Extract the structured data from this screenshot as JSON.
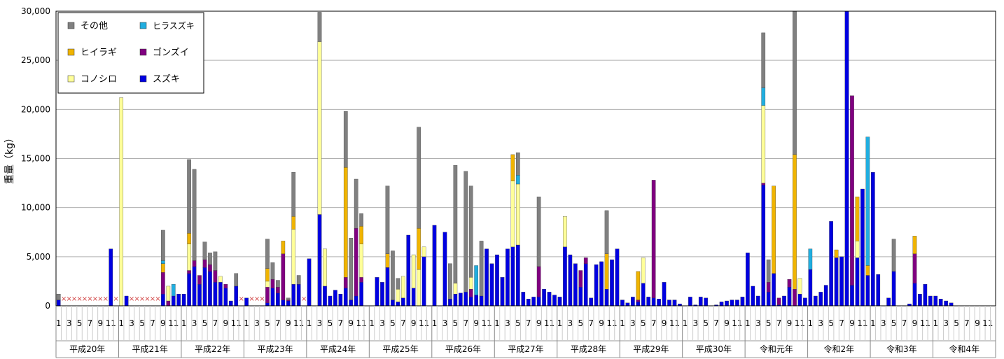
{
  "chart_data": {
    "type": "bar",
    "stacked": true,
    "ylabel": "重量（kg）",
    "ylim": [
      0,
      30000
    ],
    "yticks": [
      "0",
      "5,000",
      "10,000",
      "15,000",
      "20,000",
      "25,000",
      "30,000"
    ],
    "grid": true,
    "legend_position": "top-left",
    "month_labels": [
      "1",
      "",
      "3",
      "",
      "5",
      "",
      "7",
      "",
      "9",
      "",
      "11",
      ""
    ],
    "years": [
      "平成20年",
      "平成21年",
      "平成22年",
      "平成23年",
      "平成24年",
      "平成25年",
      "平成26年",
      "平成27年",
      "平成28年",
      "平成29年",
      "平成30年",
      "令和元年",
      "令和2年",
      "令和3年",
      "令和4年"
    ],
    "zero_marker": "×",
    "series": [
      {
        "name": "スズキ",
        "color": "#0000e0",
        "values": [
          600,
          0,
          0,
          0,
          0,
          0,
          0,
          0,
          0,
          0,
          5800,
          0,
          0,
          1000,
          0,
          0,
          0,
          0,
          0,
          0,
          1200,
          0,
          1000,
          1200,
          1200,
          3300,
          4000,
          2200,
          3900,
          3500,
          2400,
          2400,
          1800,
          500,
          2000,
          0,
          800,
          0,
          0,
          0,
          300,
          1800,
          1300,
          600,
          500,
          2200,
          2200,
          0,
          4800,
          0,
          9300,
          2000,
          1000,
          1600,
          1200,
          1800,
          600,
          1000,
          2400,
          0,
          0,
          2900,
          2400,
          3900,
          600,
          400,
          800,
          7200,
          1800,
          0,
          5000,
          0,
          8200,
          0,
          7500,
          700,
          1200,
          1300,
          1400,
          900,
          1100,
          1000,
          5800,
          4300,
          5200,
          2900,
          5800,
          6000,
          6200,
          1400,
          700,
          900,
          900,
          1700,
          1400,
          1100,
          900,
          6000,
          5200,
          4300,
          1900,
          4300,
          800,
          4200,
          4500,
          1700,
          4700,
          5800,
          600,
          300,
          900,
          400,
          2300,
          900,
          800,
          700,
          2400,
          600,
          600,
          200,
          0,
          900,
          100,
          900,
          800,
          0,
          100,
          400,
          500,
          600,
          600,
          900,
          5400,
          2000,
          1000,
          12300,
          1400,
          3300,
          100,
          1000,
          1900,
          0,
          1200,
          800,
          3700,
          1000,
          1400,
          2100,
          8600,
          4900,
          5000,
          30000,
          2100,
          4900,
          11900,
          3100,
          13600,
          3200,
          0,
          800,
          3500,
          0,
          0,
          200,
          2300,
          1200,
          2200,
          1000,
          1000,
          700,
          500,
          300,
          0,
          0,
          0,
          0,
          0,
          0,
          0,
          0
        ]
      },
      {
        "name": "ゴンズイ",
        "color": "#800080",
        "values": [
          0,
          0,
          0,
          0,
          0,
          0,
          0,
          0,
          0,
          0,
          0,
          0,
          0,
          0,
          0,
          0,
          0,
          0,
          0,
          0,
          2200,
          500,
          0,
          0,
          0,
          300,
          600,
          900,
          800,
          700,
          1200,
          0,
          400,
          0,
          0,
          0,
          0,
          0,
          0,
          0,
          1600,
          900,
          600,
          4700,
          100,
          0,
          0,
          0,
          0,
          0,
          0,
          0,
          0,
          0,
          0,
          1100,
          0,
          6900,
          500,
          0,
          0,
          0,
          0,
          0,
          0,
          0,
          0,
          0,
          0,
          0,
          0,
          0,
          0,
          0,
          0,
          0,
          0,
          0,
          0,
          800,
          0,
          0,
          0,
          0,
          0,
          0,
          0,
          0,
          0,
          0,
          0,
          0,
          3100,
          0,
          0,
          0,
          0,
          0,
          0,
          0,
          1700,
          600,
          0,
          0,
          0,
          0,
          0,
          0,
          0,
          0,
          0,
          200,
          0,
          0,
          12000,
          0,
          0,
          0,
          0,
          0,
          0,
          0,
          0,
          0,
          0,
          0,
          0,
          0,
          0,
          0,
          0,
          0,
          0,
          0,
          0,
          200,
          1000,
          0,
          700,
          0,
          800,
          1700,
          0,
          0,
          0,
          0,
          0,
          0,
          0,
          0,
          0,
          0,
          19300,
          0,
          0,
          0,
          0,
          0,
          0,
          0,
          0,
          0,
          0,
          0,
          3000,
          0,
          0,
          0,
          0,
          0,
          0,
          0,
          0,
          0,
          0,
          0,
          0,
          0,
          0,
          0
        ]
      },
      {
        "name": "コノシロ",
        "color": "#ffff99",
        "values": [
          0,
          0,
          0,
          0,
          0,
          0,
          0,
          0,
          0,
          0,
          0,
          0,
          21200,
          0,
          0,
          0,
          0,
          0,
          0,
          0,
          0,
          1500,
          0,
          0,
          0,
          2700,
          0,
          0,
          0,
          0,
          0,
          600,
          0,
          0,
          0,
          0,
          0,
          0,
          0,
          0,
          600,
          0,
          0,
          0,
          0,
          5600,
          0,
          0,
          0,
          0,
          17600,
          3800,
          0,
          0,
          0,
          0,
          0,
          0,
          3400,
          0,
          0,
          0,
          0,
          0,
          0,
          1300,
          2200,
          0,
          3400,
          3700,
          1000,
          0,
          0,
          0,
          0,
          0,
          1100,
          0,
          0,
          1200,
          0,
          0,
          0,
          0,
          0,
          0,
          0,
          6700,
          6200,
          0,
          0,
          0,
          0,
          0,
          0,
          0,
          0,
          3100,
          0,
          0,
          0,
          0,
          0,
          0,
          0,
          0,
          0,
          0,
          0,
          0,
          0,
          0,
          2600,
          0,
          0,
          0,
          0,
          0,
          0,
          0,
          0,
          0,
          0,
          0,
          0,
          0,
          0,
          0,
          0,
          0,
          0,
          0,
          0,
          0,
          0,
          7900,
          0,
          0,
          0,
          0,
          0,
          0,
          1600,
          0,
          0,
          0,
          0,
          0,
          0,
          0,
          0,
          0,
          0,
          1700,
          0,
          0,
          0,
          0,
          0,
          0,
          0,
          0,
          0,
          0,
          0,
          0,
          0,
          0,
          0,
          0,
          0,
          0,
          0,
          0,
          0,
          0,
          0,
          0,
          0,
          0
        ]
      },
      {
        "name": "ヒイラギ",
        "color": "#f0b400",
        "values": [
          0,
          0,
          0,
          0,
          0,
          0,
          0,
          0,
          0,
          0,
          0,
          0,
          0,
          0,
          0,
          0,
          0,
          0,
          0,
          0,
          900,
          0,
          0,
          0,
          0,
          1100,
          0,
          0,
          0,
          0,
          0,
          0,
          0,
          0,
          0,
          0,
          0,
          0,
          0,
          0,
          1300,
          0,
          0,
          1300,
          0,
          1300,
          0,
          0,
          0,
          0,
          0,
          0,
          0,
          0,
          0,
          11200,
          0,
          0,
          1800,
          0,
          0,
          0,
          0,
          1400,
          0,
          0,
          0,
          0,
          0,
          4200,
          0,
          0,
          0,
          0,
          0,
          0,
          0,
          0,
          0,
          0,
          0,
          0,
          0,
          0,
          0,
          0,
          0,
          2700,
          0,
          0,
          0,
          0,
          0,
          0,
          0,
          0,
          0,
          0,
          0,
          0,
          0,
          0,
          0,
          0,
          0,
          3600,
          0,
          0,
          0,
          0,
          0,
          2900,
          0,
          0,
          0,
          0,
          0,
          0,
          0,
          0,
          0,
          0,
          0,
          0,
          0,
          0,
          0,
          0,
          0,
          0,
          0,
          0,
          0,
          0,
          0,
          0,
          0,
          8900,
          0,
          0,
          0,
          13700,
          0,
          0,
          0,
          0,
          0,
          0,
          0,
          800,
          0,
          0,
          0,
          4500,
          0,
          1000,
          0,
          0,
          0,
          0,
          0,
          0,
          0,
          0,
          1800,
          0,
          0,
          0,
          0,
          0,
          0,
          0,
          0,
          0,
          0,
          0,
          0,
          0,
          0,
          0
        ]
      },
      {
        "name": "ヒラスズキ",
        "color": "#20aee0",
        "values": [
          0,
          0,
          0,
          0,
          0,
          0,
          0,
          0,
          0,
          0,
          0,
          0,
          0,
          0,
          0,
          0,
          0,
          0,
          0,
          0,
          300,
          0,
          1200,
          0,
          0,
          0,
          0,
          0,
          0,
          0,
          0,
          0,
          0,
          0,
          0,
          0,
          0,
          0,
          0,
          0,
          0,
          0,
          0,
          0,
          0,
          0,
          0,
          0,
          0,
          0,
          0,
          0,
          0,
          0,
          0,
          0,
          0,
          0,
          0,
          0,
          0,
          0,
          0,
          0,
          0,
          0,
          0,
          0,
          0,
          0,
          0,
          0,
          0,
          0,
          0,
          0,
          0,
          0,
          0,
          0,
          3000,
          0,
          0,
          0,
          0,
          0,
          0,
          0,
          900,
          0,
          0,
          0,
          0,
          0,
          0,
          0,
          0,
          0,
          0,
          0,
          0,
          0,
          0,
          0,
          0,
          0,
          0,
          0,
          0,
          0,
          0,
          0,
          0,
          0,
          0,
          0,
          0,
          0,
          0,
          0,
          0,
          0,
          0,
          0,
          0,
          0,
          0,
          0,
          0,
          0,
          0,
          0,
          0,
          0,
          0,
          1800,
          0,
          0,
          0,
          0,
          0,
          0,
          0,
          0,
          2100,
          0,
          0,
          0,
          0,
          0,
          0,
          0,
          0,
          0,
          0,
          13100,
          0,
          0,
          0,
          0,
          0,
          0,
          0,
          0,
          0,
          0,
          0,
          0,
          0,
          0,
          0,
          0,
          0,
          0,
          0,
          0,
          0,
          0,
          0,
          0
        ]
      },
      {
        "name": "その他",
        "color": "#808080",
        "values": [
          600,
          0,
          0,
          0,
          0,
          0,
          0,
          0,
          0,
          0,
          0,
          0,
          0,
          0,
          0,
          0,
          0,
          0,
          0,
          0,
          3100,
          0,
          0,
          0,
          0,
          7500,
          9300,
          0,
          1800,
          1200,
          1900,
          0,
          0,
          0,
          1300,
          0,
          0,
          0,
          0,
          0,
          3000,
          1700,
          700,
          0,
          200,
          4500,
          900,
          0,
          0,
          0,
          3000,
          0,
          0,
          0,
          0,
          5700,
          6300,
          5000,
          1300,
          0,
          0,
          0,
          0,
          6900,
          5000,
          1100,
          0,
          0,
          0,
          10300,
          0,
          0,
          0,
          0,
          0,
          3600,
          12000,
          0,
          12300,
          9300,
          0,
          5600,
          0,
          0,
          0,
          0,
          0,
          0,
          2300,
          0,
          0,
          0,
          7100,
          0,
          0,
          0,
          0,
          0,
          0,
          0,
          0,
          0,
          0,
          0,
          0,
          4400,
          0,
          0,
          0,
          0,
          0,
          0,
          0,
          0,
          0,
          0,
          0,
          0,
          0,
          0,
          0,
          0,
          0,
          0,
          0,
          0,
          0,
          0,
          0,
          0,
          0,
          0,
          0,
          0,
          0,
          5600,
          2300,
          0,
          0,
          0,
          0,
          16000,
          0,
          0,
          0,
          0,
          0,
          0,
          0,
          0,
          0,
          0,
          0,
          0,
          0,
          0,
          0,
          0,
          0,
          0,
          3300,
          0,
          0,
          0,
          0,
          0,
          0,
          0,
          0,
          0,
          0,
          0,
          0,
          0,
          0,
          0,
          0,
          0,
          0,
          0
        ]
      }
    ]
  }
}
